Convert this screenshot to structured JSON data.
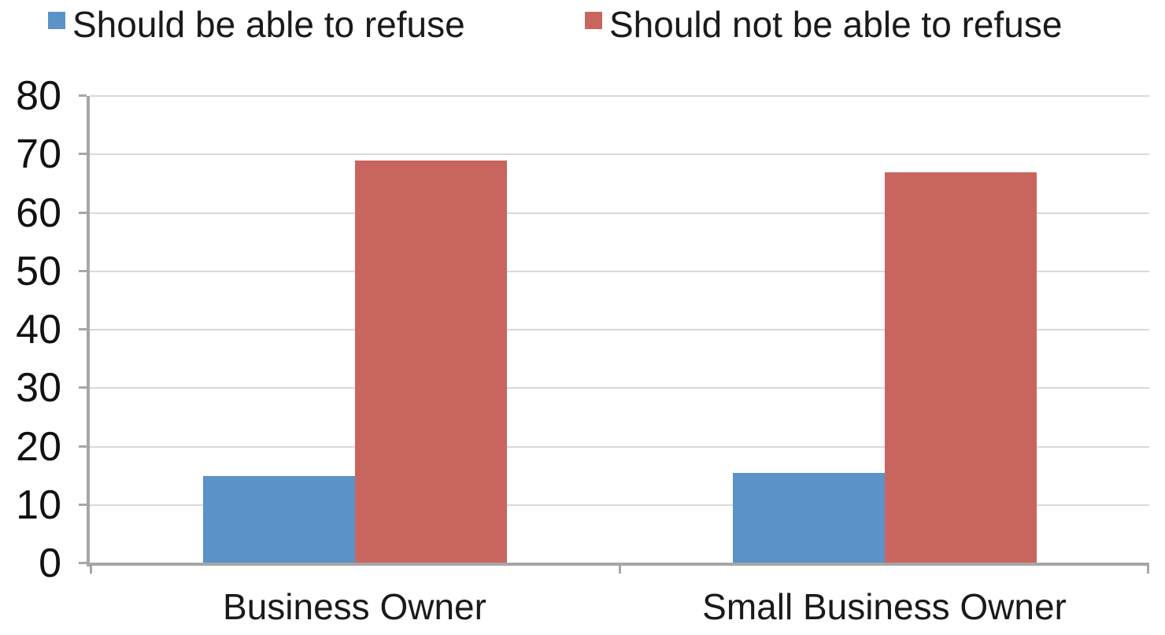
{
  "chart_data": {
    "type": "bar",
    "title": "",
    "categories": [
      "Business Owner",
      "Small Business Owner"
    ],
    "series": [
      {
        "name": "Should be able to refuse",
        "color": "#5b93c8",
        "values": [
          15,
          15.5
        ]
      },
      {
        "name": "Should not be able to refuse",
        "color": "#c9655f",
        "values": [
          69,
          67
        ]
      }
    ],
    "ylim": [
      0,
      80
    ],
    "y_ticks": [
      0,
      10,
      20,
      30,
      40,
      50,
      60,
      70,
      80
    ],
    "grid": true,
    "legend_position": "top",
    "colors": {
      "gridline": "#d9d9d9",
      "axis": "#a6a6a6",
      "text": "#1a1a1a",
      "background": "#ffffff"
    }
  }
}
